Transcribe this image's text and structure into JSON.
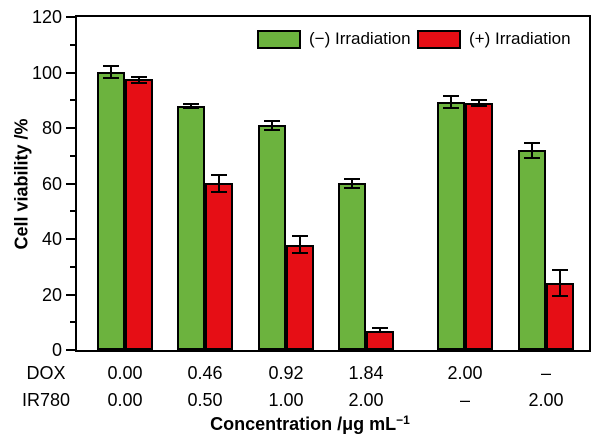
{
  "chart_data": {
    "type": "bar",
    "title": "",
    "ylabel": "Cell viability /%",
    "xlabel": "Concentration /μg mL⁻¹",
    "xlabel_base": "Concentration /μg mL",
    "xlabel_sup": "−1",
    "ylim": [
      0,
      120
    ],
    "yticks": [
      0,
      20,
      40,
      60,
      80,
      100,
      120
    ],
    "yticks_minor": [
      10,
      30,
      50,
      70,
      90,
      110
    ],
    "grid": false,
    "legend_position": "inside-top-right",
    "x_axis_rows": [
      {
        "header": "DOX",
        "values": [
          "0.00",
          "0.46",
          "0.92",
          "1.84",
          "2.00",
          "–"
        ]
      },
      {
        "header": "IR780",
        "values": [
          "0.00",
          "0.50",
          "1.00",
          "2.00",
          "–",
          "2.00"
        ]
      }
    ],
    "series": [
      {
        "name": "(−) Irradiation",
        "color": "#6cb33e",
        "values": [
          100,
          88,
          81,
          60,
          89.5,
          72
        ],
        "errors": [
          2.5,
          1,
          2,
          2,
          2.5,
          3
        ]
      },
      {
        "name": "(+) Irradiation",
        "color": "#e60e15",
        "values": [
          97.5,
          60,
          38,
          7,
          89,
          24
        ],
        "errors": [
          1.5,
          3.5,
          3.5,
          1,
          1.5,
          5
        ]
      }
    ]
  }
}
